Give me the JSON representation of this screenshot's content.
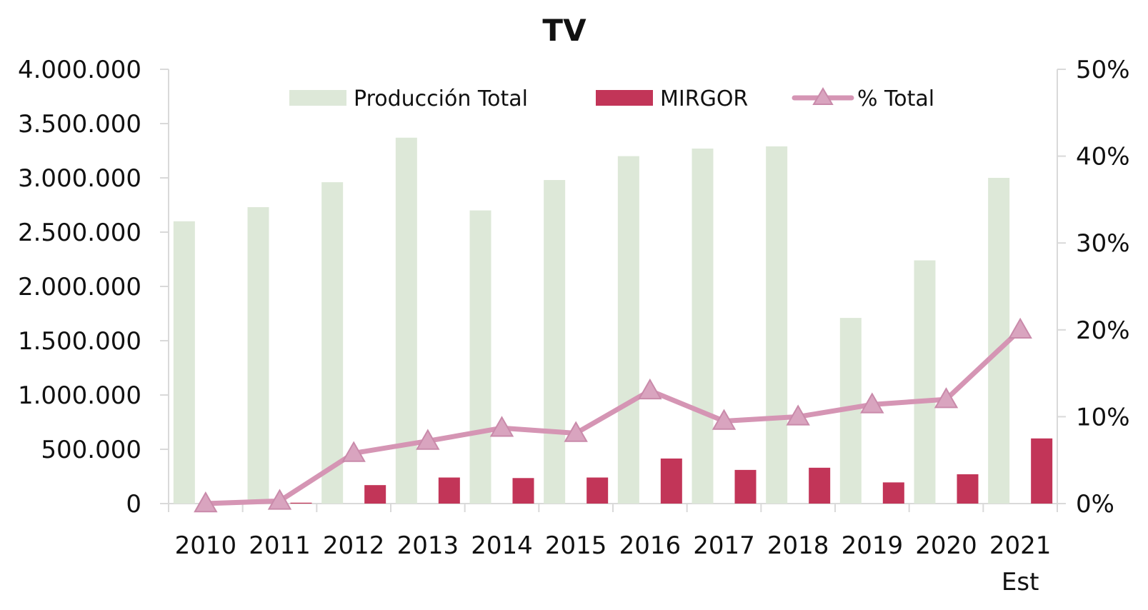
{
  "chart_data": {
    "type": "bar",
    "title": "TV",
    "categories": [
      "2010",
      "2011",
      "2012",
      "2013",
      "2014",
      "2015",
      "2016",
      "2017",
      "2018",
      "2019",
      "2020",
      "2021\nEst"
    ],
    "series": [
      {
        "name": "Producción Total",
        "kind": "bar",
        "axis": "left",
        "color": "#dde8d8",
        "values": [
          2600000,
          2730000,
          2960000,
          3370000,
          2700000,
          2980000,
          3200000,
          3270000,
          3290000,
          1710000,
          2240000,
          3000000
        ]
      },
      {
        "name": "MIRGOR",
        "kind": "bar",
        "axis": "left",
        "color": "#c23558",
        "values": [
          0,
          8000,
          170000,
          240000,
          235000,
          240000,
          415000,
          310000,
          330000,
          195000,
          270000,
          600000
        ]
      },
      {
        "name": "% Total",
        "kind": "line",
        "marker": "triangle",
        "axis": "right",
        "color": "#d595b4",
        "values": [
          0.0,
          0.3,
          5.8,
          7.2,
          8.7,
          8.1,
          13.0,
          9.5,
          10.0,
          11.4,
          12.0,
          20.0
        ]
      }
    ],
    "y_left": {
      "min": 0,
      "max": 4000000,
      "ticks": [
        "0",
        "500.000",
        "1.000.000",
        "1.500.000",
        "2.000.000",
        "2.500.000",
        "3.000.000",
        "3.500.000",
        "4.000.000"
      ]
    },
    "y_right": {
      "min": 0,
      "max": 50,
      "ticks": [
        "0%",
        "10%",
        "20%",
        "30%",
        "40%",
        "50%"
      ]
    },
    "legend_position": "top-center",
    "grid": false
  }
}
